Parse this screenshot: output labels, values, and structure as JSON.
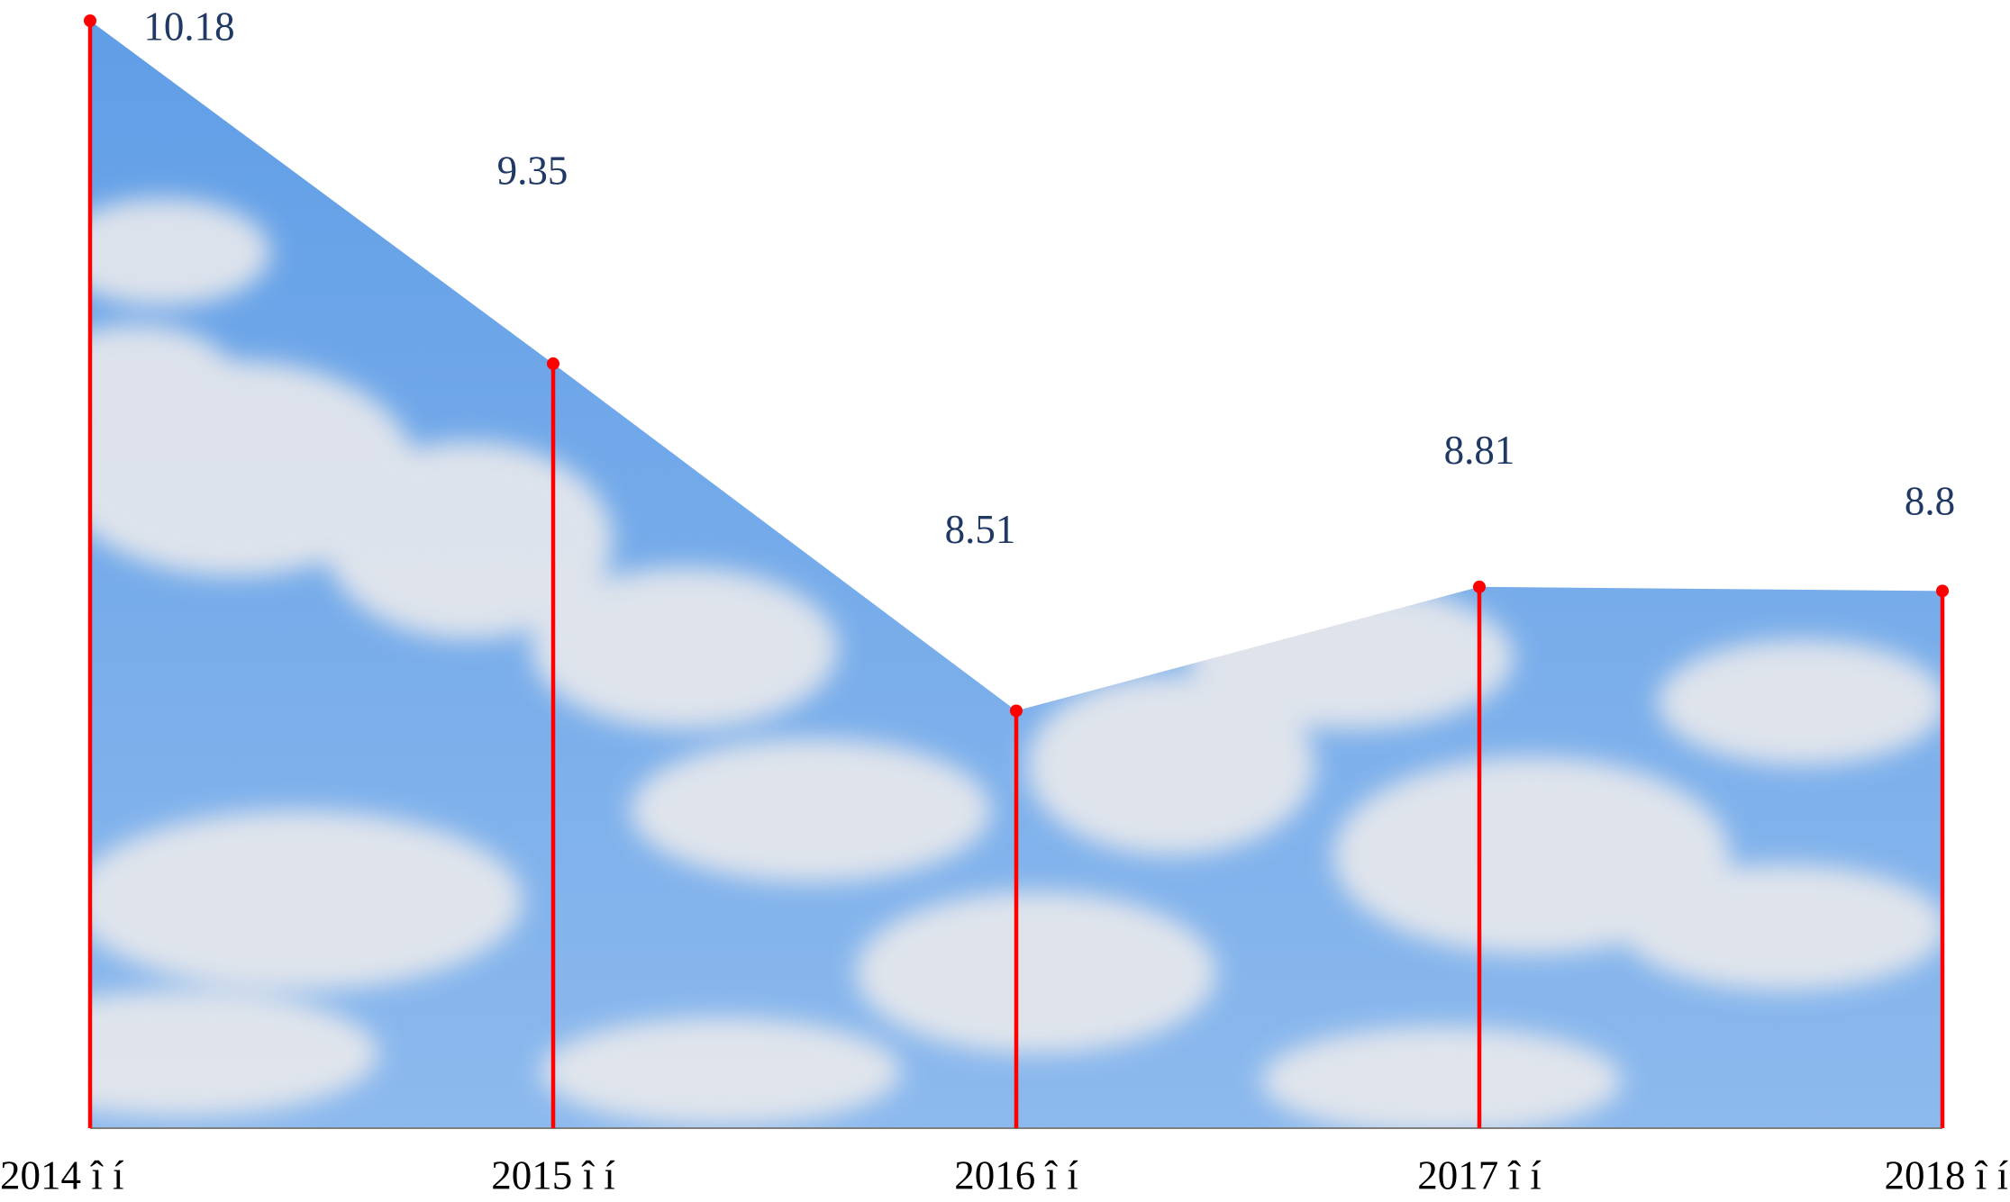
{
  "chart_data": {
    "type": "area",
    "categories": [
      "2014 î í",
      "2015 î í",
      "2016 î í",
      "2017 î í",
      "2018 î í"
    ],
    "values": [
      10.18,
      9.35,
      8.51,
      8.81,
      8.8
    ],
    "ylim": [
      7.5,
      10.18
    ],
    "color": "#ff0000",
    "label_color": "#1f3864"
  }
}
